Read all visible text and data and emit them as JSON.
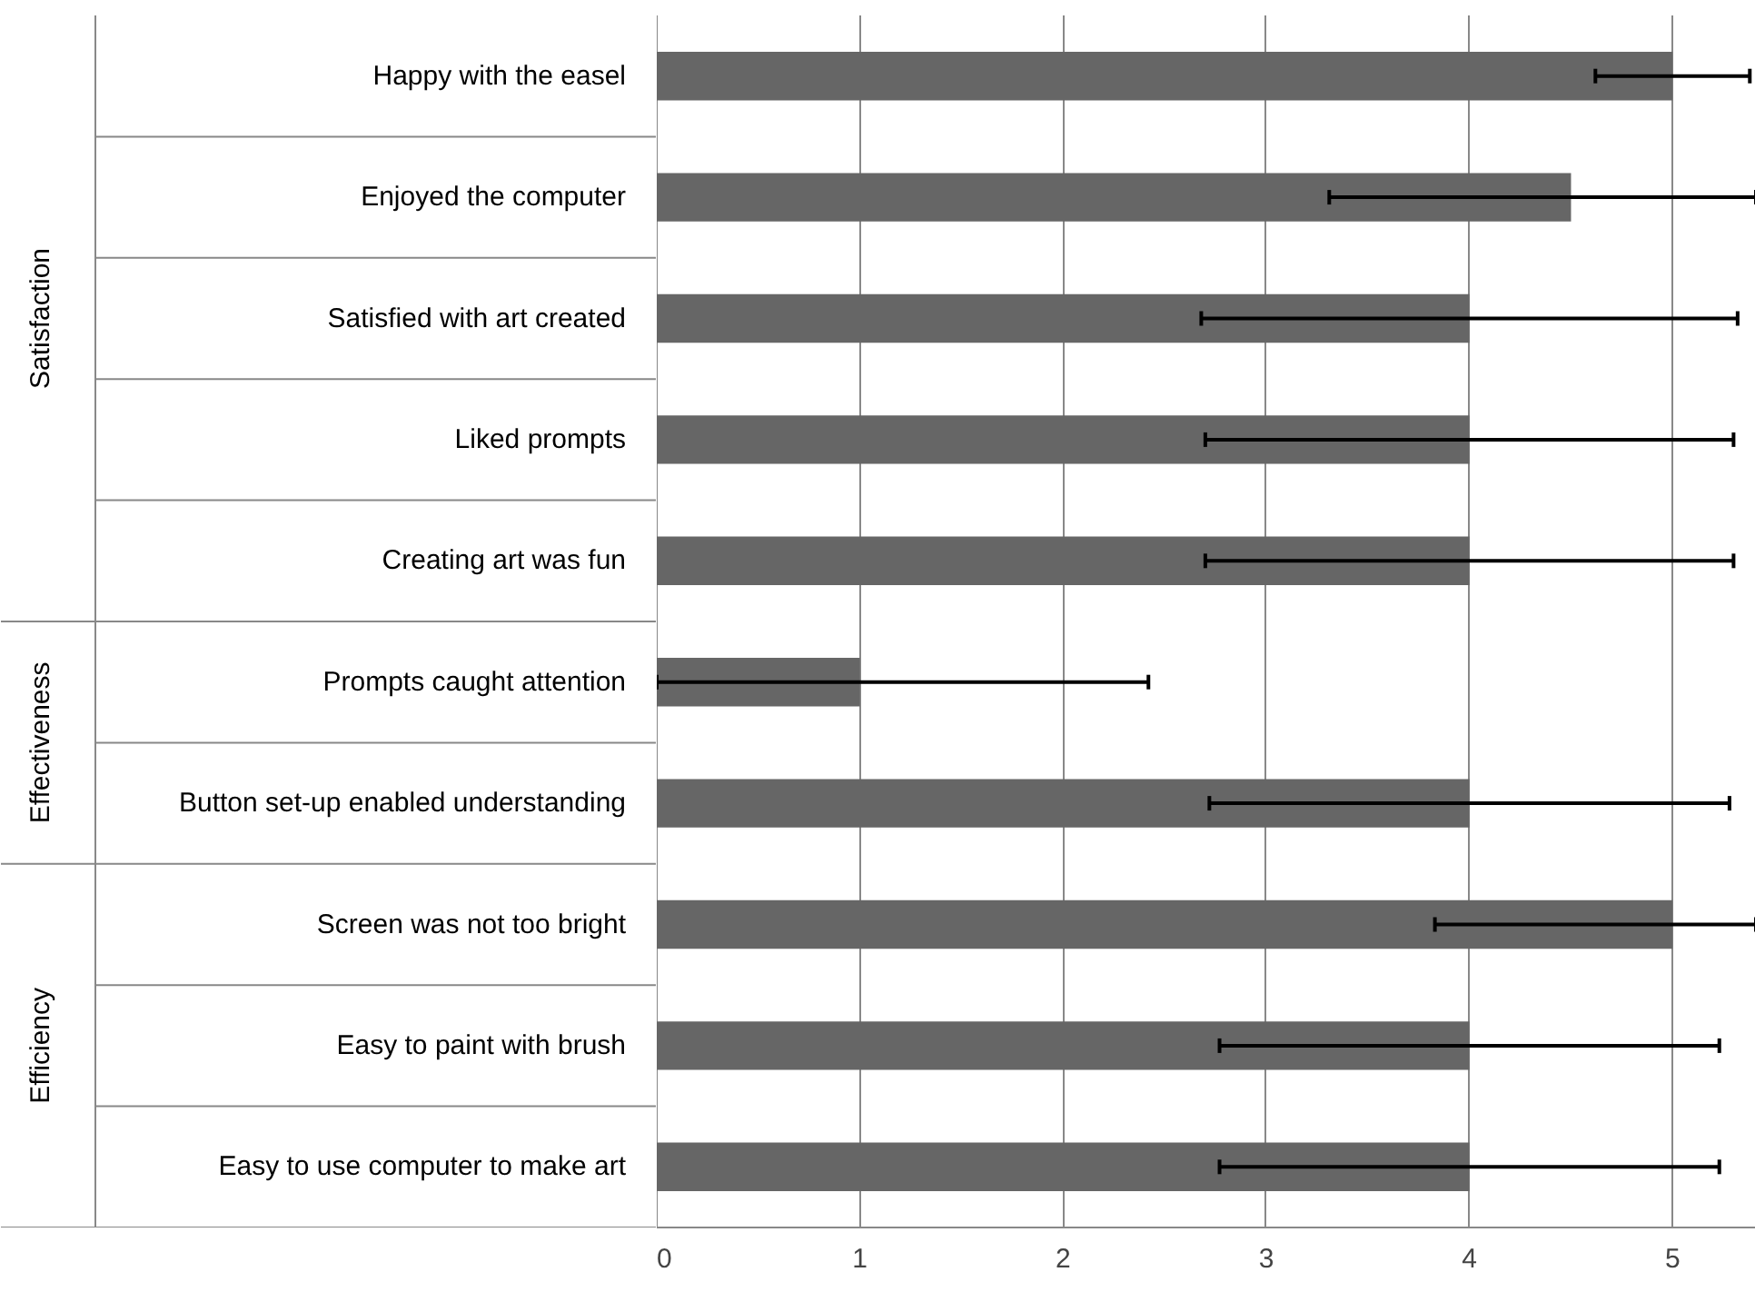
{
  "chart_data": {
    "type": "bar",
    "orientation": "horizontal",
    "categories": [
      "Happy with the easel",
      "Enjoyed the computer",
      "Satisfied with art created",
      "Liked prompts",
      "Creating art was fun",
      "Prompts caught attention",
      "Button set-up enabled understanding",
      "Screen was not too bright",
      "Easy to paint with brush",
      "Easy to use computer to make art"
    ],
    "values": [
      5,
      4.5,
      4,
      4,
      4,
      1,
      4,
      5,
      4,
      4
    ],
    "errors": [
      0.38,
      [
        3.31,
        5.41
      ],
      1.32,
      1.3,
      1.3,
      [
        0,
        2.42
      ],
      1.28,
      [
        3.83,
        5.41
      ],
      1.23,
      1.23
    ],
    "color": "#666666",
    "xlim": [
      0,
      5.41
    ],
    "xticks": [
      0,
      1,
      2,
      3,
      4,
      5
    ],
    "grid": "x",
    "annotations": [
      "Satisfaction",
      "Effectiveness",
      "Efficiency"
    ]
  }
}
